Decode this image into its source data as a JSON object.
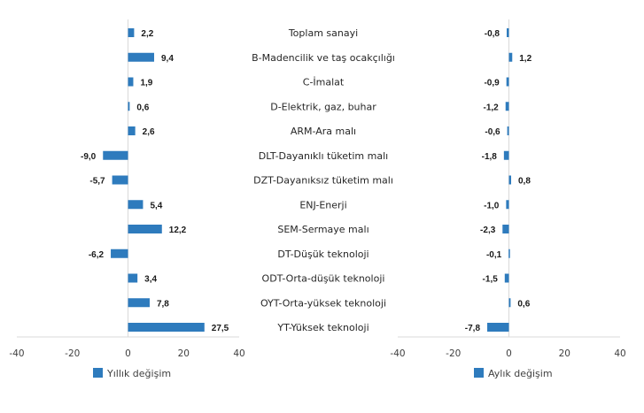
{
  "chart_data": {
    "type": "bar",
    "orientation": "horizontal",
    "categories": [
      "Toplam sanayi",
      "B-Madencilik ve taş ocakçılığı",
      "C-İmalat",
      "D-Elektrik, gaz, buhar",
      "ARM-Ara malı",
      "DLT-Dayanıklı tüketim malı",
      "DZT-Dayanıksız tüketim malı",
      "ENJ-Enerji",
      "SEM-Sermaye malı",
      "DT-Düşük teknoloji",
      "ODT-Orta-düşük teknoloji",
      "OYT-Orta-yüksek teknoloji",
      "YT-Yüksek teknoloji"
    ],
    "series": [
      {
        "name": "Yıllık değişim",
        "values": [
          2.2,
          9.4,
          1.9,
          0.6,
          2.6,
          -9.0,
          -5.7,
          5.4,
          12.2,
          -6.2,
          3.4,
          7.8,
          27.5
        ],
        "labels": [
          "2,2",
          "9,4",
          "1,9",
          "0,6",
          "2,6",
          "-9,0",
          "-5,7",
          "5,4",
          "12,2",
          "-6,2",
          "3,4",
          "7,8",
          "27,5"
        ]
      },
      {
        "name": "Aylık değişim",
        "values": [
          -0.8,
          1.2,
          -0.9,
          -1.2,
          -0.6,
          -1.8,
          0.8,
          -1.0,
          -2.3,
          -0.1,
          -1.5,
          0.6,
          -7.8
        ],
        "labels": [
          "-0,8",
          "1,2",
          "-0,9",
          "-1,2",
          "-0,6",
          "-1,8",
          "0,8",
          "-1,0",
          "-2,3",
          "-0,1",
          "-1,5",
          "0,6",
          "-7,8"
        ]
      }
    ],
    "xlim": [
      -40,
      40
    ],
    "xticks": [
      -40,
      -20,
      0,
      20,
      40
    ],
    "xtick_labels": [
      "-40",
      "-20",
      "0",
      "20",
      "40"
    ],
    "title": "",
    "xlabel": "",
    "ylabel": "",
    "grid": false,
    "legend_position": "bottom",
    "bar_color": "#2e7bbd",
    "axis_color": "#d9d9d9"
  }
}
